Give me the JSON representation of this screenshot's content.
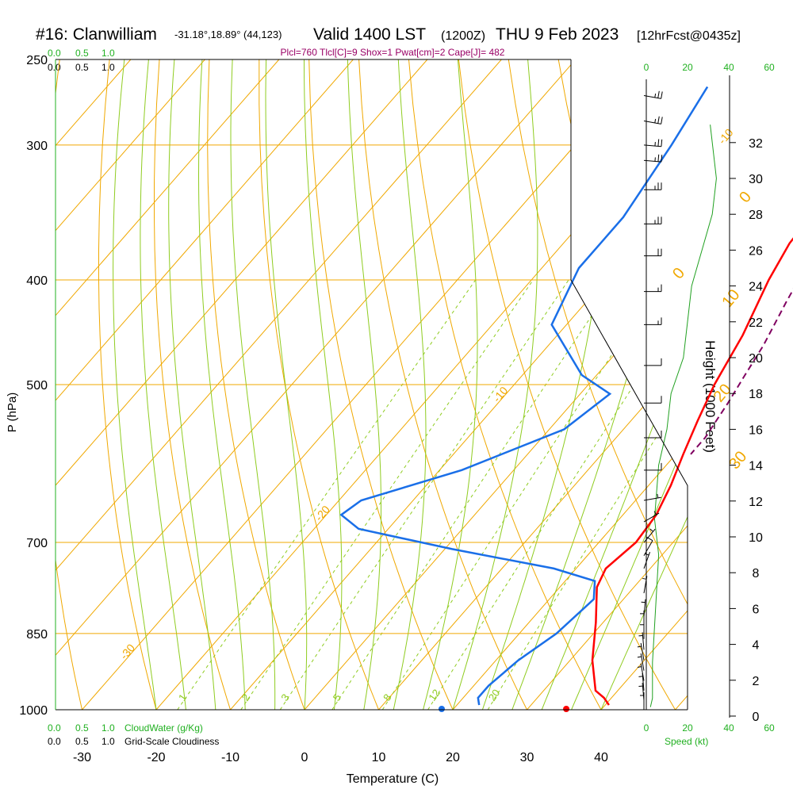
{
  "header": {
    "station": "#16: Clanwilliam",
    "coords": "-31.18°,18.89° (44,123)",
    "valid": "Valid 1400 LST",
    "zulu": "(1200Z)",
    "date": "THU 9 Feb 2023",
    "forecast": "[12hrFcst@0435z]"
  },
  "indices": "Plcl=760 Tlcl[C]=9 Shox=1 Pwat[cm]=2 Cape[J]= 482",
  "scales": {
    "cloudwater_ticks": [
      "0.0",
      "0.5",
      "1.0"
    ],
    "cloudiness_ticks": [
      "0.0",
      "0.5",
      "1.0"
    ],
    "cloudwater_label": "CloudWater (g/Kg)",
    "cloudiness_label": "Grid-Scale Cloudiness",
    "speed_ticks": [
      "0",
      "20",
      "40",
      "60"
    ],
    "speed_label": "Speed (kt)"
  },
  "colors": {
    "temperature": "#ff0000",
    "dewpoint": "#1a6fe8",
    "parcel": "#800060",
    "isotherm": "#f0a800",
    "mixing_ratio": "#8fcc20",
    "wind_speed": "#20a020",
    "isobar": "#f0a800"
  },
  "chart_data": {
    "type": "line",
    "subtype": "skew-T log-P sounding",
    "xlabel": "Temperature (C)",
    "ylabel": "P (hPa)",
    "y2label": "Height (1000 Feet)",
    "x_ticks": [
      -30,
      -20,
      -10,
      0,
      10,
      20,
      30,
      40
    ],
    "pressure_ticks": [
      250,
      300,
      400,
      500,
      700,
      850,
      1000
    ],
    "height_ticks_kft": [
      0,
      2,
      4,
      6,
      8,
      10,
      12,
      14,
      16,
      18,
      20,
      22,
      24,
      26,
      28,
      30,
      32
    ],
    "xlim": [
      -33,
      41
    ],
    "plim": [
      1000,
      250
    ],
    "isotherm_labels": [
      {
        "t": -10,
        "p": 300,
        "text": "-10"
      },
      {
        "t": 0,
        "p": 400,
        "text": "0"
      },
      {
        "t": -10,
        "p": 520,
        "text": "-10"
      },
      {
        "t": -20,
        "p": 670,
        "text": "-20"
      },
      {
        "t": -30,
        "p": 900,
        "text": "-30"
      },
      {
        "t": 0,
        "p": 340,
        "text": "0"
      },
      {
        "t": 10,
        "p": 425,
        "text": "10"
      },
      {
        "t": 20,
        "p": 520,
        "text": "20"
      },
      {
        "t": 30,
        "p": 600,
        "text": "30"
      }
    ],
    "mixing_ratio_labels": [
      "1",
      "2",
      "3",
      "5",
      "8",
      "12",
      "20"
    ],
    "mixing_ratios": [
      1,
      2,
      3,
      5,
      8,
      12,
      20
    ],
    "series": [
      {
        "name": "temperature",
        "points": [
          [
            3.5,
            265
          ],
          [
            7,
            295
          ],
          [
            10,
            340
          ],
          [
            10.5,
            370
          ],
          [
            12,
            400
          ],
          [
            15,
            450
          ],
          [
            17,
            500
          ],
          [
            19,
            540
          ],
          [
            21,
            580
          ],
          [
            23,
            620
          ],
          [
            24.5,
            660
          ],
          [
            25,
            700
          ],
          [
            24,
            740
          ],
          [
            25,
            770
          ],
          [
            29,
            830
          ],
          [
            33,
            900
          ],
          [
            37,
            960
          ],
          [
            39,
            975
          ],
          [
            40.5,
            990
          ]
        ]
      },
      {
        "name": "dewpoint",
        "points": [
          [
            -19,
            265
          ],
          [
            -17,
            300
          ],
          [
            -15,
            350
          ],
          [
            -15,
            390
          ],
          [
            -12,
            440
          ],
          [
            -2,
            490
          ],
          [
            4,
            510
          ],
          [
            2,
            550
          ],
          [
            -7,
            600
          ],
          [
            -17,
            640
          ],
          [
            -18,
            660
          ],
          [
            -14,
            680
          ],
          [
            1,
            710
          ],
          [
            17,
            740
          ],
          [
            24,
            760
          ],
          [
            26,
            790
          ],
          [
            25,
            850
          ],
          [
            23,
            900
          ],
          [
            22,
            950
          ],
          [
            22,
            975
          ],
          [
            23,
            990
          ]
        ]
      },
      {
        "name": "parcel",
        "points": [
          [
            9,
            305
          ],
          [
            12,
            340
          ],
          [
            15,
            380
          ],
          [
            17,
            420
          ],
          [
            19,
            460
          ],
          [
            20,
            490
          ],
          [
            21,
            520
          ],
          [
            22,
            560
          ],
          [
            22,
            580
          ]
        ]
      },
      {
        "name": "wind_speed",
        "points": [
          [
            2,
            0.5
          ],
          [
            3,
            1
          ],
          [
            3,
            3
          ],
          [
            4,
            5
          ],
          [
            5,
            7
          ],
          [
            6,
            9
          ],
          [
            4,
            11
          ],
          [
            6,
            14
          ],
          [
            10,
            16
          ],
          [
            12,
            18
          ],
          [
            18,
            20
          ],
          [
            20,
            22
          ],
          [
            22,
            24
          ],
          [
            27,
            26
          ],
          [
            32,
            28
          ],
          [
            34,
            30
          ],
          [
            32,
            32
          ],
          [
            31,
            33
          ]
        ]
      }
    ],
    "surface": {
      "temperature": 35.3,
      "dewpoint": 18.5,
      "p": 1000
    },
    "winds": [
      {
        "p": 1000,
        "dir": 180,
        "spd": 5
      },
      {
        "p": 980,
        "dir": 175,
        "spd": 5
      },
      {
        "p": 960,
        "dir": 175,
        "spd": 5
      },
      {
        "p": 940,
        "dir": 170,
        "spd": 5
      },
      {
        "p": 920,
        "dir": 170,
        "spd": 5
      },
      {
        "p": 900,
        "dir": 170,
        "spd": 5
      },
      {
        "p": 880,
        "dir": 175,
        "spd": 5
      },
      {
        "p": 860,
        "dir": 180,
        "spd": 5
      },
      {
        "p": 840,
        "dir": 180,
        "spd": 5
      },
      {
        "p": 820,
        "dir": 185,
        "spd": 5
      },
      {
        "p": 780,
        "dir": 190,
        "spd": 5
      },
      {
        "p": 740,
        "dir": 200,
        "spd": 5
      },
      {
        "p": 720,
        "dir": 210,
        "spd": 10
      },
      {
        "p": 700,
        "dir": 220,
        "spd": 5
      },
      {
        "p": 670,
        "dir": 240,
        "spd": 5
      },
      {
        "p": 640,
        "dir": 260,
        "spd": 5
      },
      {
        "p": 600,
        "dir": 270,
        "spd": 10
      },
      {
        "p": 560,
        "dir": 270,
        "spd": 10
      },
      {
        "p": 520,
        "dir": 270,
        "spd": 10
      },
      {
        "p": 480,
        "dir": 270,
        "spd": 10
      },
      {
        "p": 440,
        "dir": 270,
        "spd": 15
      },
      {
        "p": 410,
        "dir": 270,
        "spd": 15
      },
      {
        "p": 380,
        "dir": 270,
        "spd": 20
      },
      {
        "p": 355,
        "dir": 270,
        "spd": 25
      },
      {
        "p": 330,
        "dir": 270,
        "spd": 25
      },
      {
        "p": 310,
        "dir": 275,
        "spd": 25
      },
      {
        "p": 300,
        "dir": 275,
        "spd": 25
      },
      {
        "p": 285,
        "dir": 280,
        "spd": 25
      },
      {
        "p": 270,
        "dir": 280,
        "spd": 25
      }
    ]
  }
}
